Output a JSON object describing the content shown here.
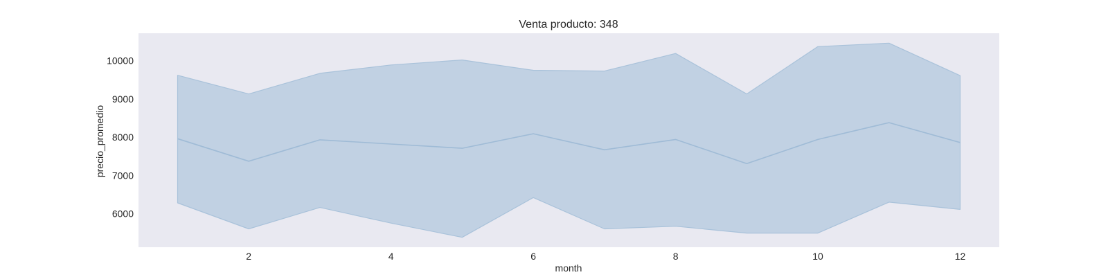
{
  "chart_data": {
    "type": "area",
    "title": "Venta producto: 348",
    "xlabel": "month",
    "ylabel": "precio_promedio",
    "x": [
      1,
      2,
      3,
      4,
      5,
      6,
      7,
      8,
      9,
      10,
      11,
      12
    ],
    "series": [
      {
        "values": [
          7960,
          7370,
          7930,
          7820,
          7710,
          8090,
          7670,
          7940,
          7310,
          7940,
          8380,
          7860
        ],
        "lower": [
          6280,
          5600,
          6160,
          5750,
          5380,
          6420,
          5600,
          5670,
          5490,
          5490,
          6300,
          6110
        ],
        "upper": [
          9620,
          9130,
          9670,
          9890,
          10020,
          9750,
          9730,
          10190,
          9130,
          10370,
          10460,
          9610
        ]
      }
    ],
    "xticks": [
      2,
      4,
      6,
      8,
      10,
      12
    ],
    "yticks": [
      6000,
      7000,
      8000,
      9000,
      10000
    ],
    "xlim": [
      0.45,
      12.55
    ],
    "ylim": [
      5120,
      10720
    ],
    "grid": false,
    "colors": {
      "plot_background": "#e9e9f1",
      "fill": "#c1d1e3",
      "fill_edge": "#a9c2da",
      "line": "#9fbbd6"
    }
  }
}
